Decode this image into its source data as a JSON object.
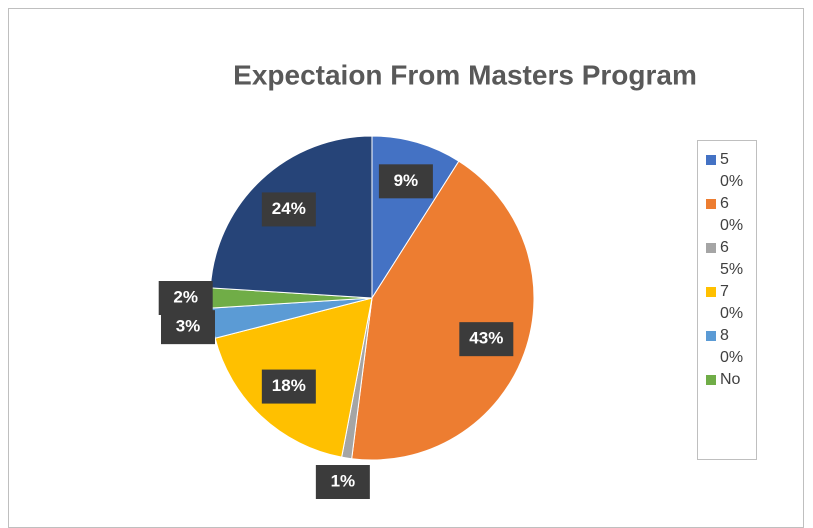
{
  "chart_data": {
    "type": "pie",
    "title": "Expectaion From Masters Program",
    "categories": [
      "50%",
      "60%",
      "65%",
      "70%",
      "80%",
      "No",
      null
    ],
    "values": [
      9,
      43,
      1,
      18,
      3,
      2,
      24
    ],
    "value_labels": [
      "9%",
      "43%",
      "1%",
      "18%",
      "3%",
      "2%",
      "24%"
    ],
    "colors": [
      "#4472c4",
      "#ed7d31",
      "#a5a5a5",
      "#ffc000",
      "#5b9bd5",
      "#70ad47",
      "#264478"
    ],
    "legend": "right"
  }
}
